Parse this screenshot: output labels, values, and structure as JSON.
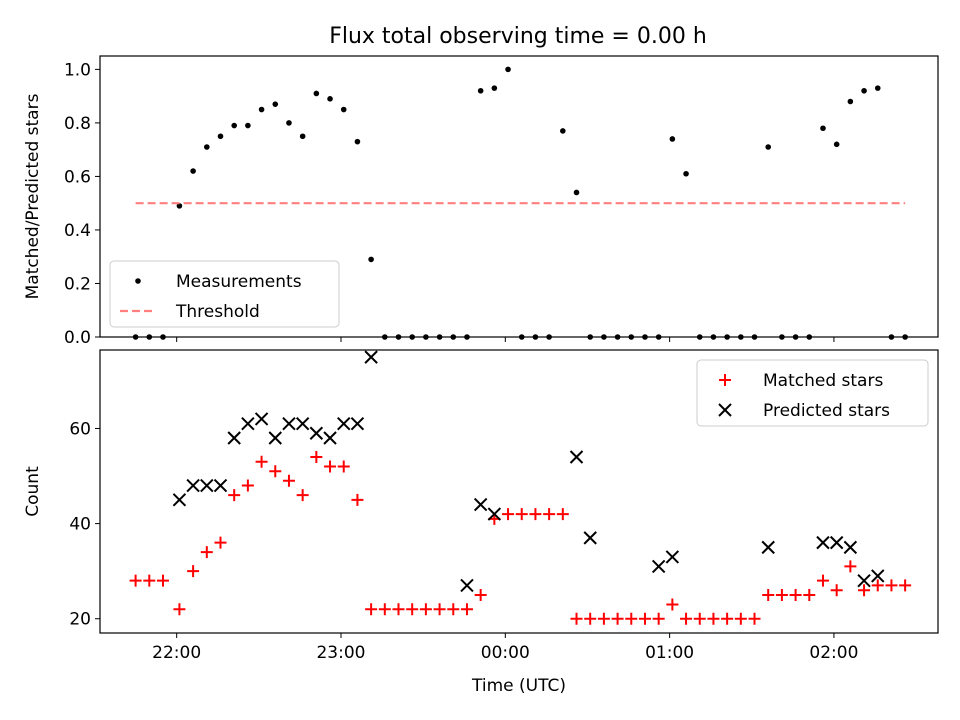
{
  "title": "Flux total observing time = 0.00 h",
  "chart_data": [
    {
      "type": "scatter",
      "ylabel": "Matched/Predicted stars",
      "xlabel": "",
      "xlim": [
        "21:32",
        "02:38"
      ],
      "ylim": [
        0,
        1.05
      ],
      "x_ticks": [
        "22:00",
        "23:00",
        "00:00",
        "01:00",
        "02:00"
      ],
      "y_ticks": [
        0.0,
        0.2,
        0.4,
        0.6,
        0.8,
        1.0
      ],
      "y_tick_labels": [
        "0.0",
        "0.2",
        "0.4",
        "0.6",
        "0.8",
        "1.0"
      ],
      "legend_position": "lower-left",
      "series": [
        {
          "name": "Measurements",
          "marker": "dot",
          "color": "#000000",
          "x": [
            "21:45",
            "21:50",
            "21:55",
            "22:01",
            "22:06",
            "22:11",
            "22:16",
            "22:21",
            "22:26",
            "22:31",
            "22:36",
            "22:41",
            "22:46",
            "22:51",
            "22:56",
            "23:01",
            "23:06",
            "23:11",
            "23:16",
            "23:21",
            "23:26",
            "23:31",
            "23:36",
            "23:41",
            "23:46",
            "23:51",
            "23:56",
            "00:01",
            "00:06",
            "00:11",
            "00:16",
            "00:21",
            "00:26",
            "00:31",
            "00:36",
            "00:41",
            "00:46",
            "00:51",
            "00:56",
            "01:01",
            "01:06",
            "01:11",
            "01:16",
            "01:21",
            "01:26",
            "01:31",
            "01:36",
            "01:41",
            "01:46",
            "01:51",
            "01:56",
            "02:01",
            "02:06",
            "02:11",
            "02:16",
            "02:21",
            "02:26"
          ],
          "y": [
            0,
            0,
            0,
            0.49,
            0.62,
            0.71,
            0.75,
            0.79,
            0.79,
            0.85,
            0.87,
            0.8,
            0.75,
            0.91,
            0.89,
            0.85,
            0.73,
            0.29,
            0,
            0,
            0,
            0,
            0,
            0,
            0,
            0.92,
            0.93,
            1.0,
            0,
            0,
            0,
            0.77,
            0.54,
            0,
            0,
            0,
            0,
            0,
            0,
            0.74,
            0.61,
            0,
            0,
            0,
            0,
            0,
            0.71,
            0,
            0,
            0,
            0.78,
            0.72,
            0.88,
            0.92,
            0.93,
            0,
            0
          ]
        },
        {
          "name": "Threshold",
          "style": "dashed",
          "color": "#ff7f7f",
          "x": [
            "21:45",
            "02:26"
          ],
          "y": [
            0.5,
            0.5
          ]
        }
      ]
    },
    {
      "type": "scatter",
      "ylabel": "Count",
      "xlabel": "Time (UTC)",
      "xlim": [
        "21:32",
        "02:38"
      ],
      "ylim": [
        17,
        76.5
      ],
      "x_ticks": [
        "22:00",
        "23:00",
        "00:00",
        "01:00",
        "02:00"
      ],
      "y_ticks": [
        20,
        40,
        60
      ],
      "y_tick_labels": [
        "20",
        "40",
        "60"
      ],
      "legend_position": "top-right",
      "series": [
        {
          "name": "Matched stars",
          "marker": "plus",
          "color": "#ff0000",
          "x": [
            "21:45",
            "21:50",
            "21:55",
            "22:01",
            "22:06",
            "22:11",
            "22:16",
            "22:21",
            "22:26",
            "22:31",
            "22:36",
            "22:41",
            "22:46",
            "22:51",
            "22:56",
            "23:01",
            "23:06",
            "23:11",
            "23:16",
            "23:21",
            "23:26",
            "23:31",
            "23:36",
            "23:41",
            "23:46",
            "23:51",
            "23:56",
            "00:01",
            "00:06",
            "00:11",
            "00:16",
            "00:21",
            "00:26",
            "00:31",
            "00:36",
            "00:41",
            "00:46",
            "00:51",
            "00:56",
            "01:01",
            "01:06",
            "01:11",
            "01:16",
            "01:21",
            "01:26",
            "01:31",
            "01:36",
            "01:41",
            "01:46",
            "01:51",
            "01:56",
            "02:01",
            "02:06",
            "02:11",
            "02:16",
            "02:21",
            "02:26"
          ],
          "y": [
            28,
            28,
            28,
            22,
            30,
            34,
            36,
            46,
            48,
            53,
            51,
            49,
            46,
            54,
            52,
            52,
            45,
            22,
            22,
            22,
            22,
            22,
            22,
            22,
            22,
            25,
            41,
            42,
            42,
            42,
            42,
            42,
            20,
            20,
            20,
            20,
            20,
            20,
            20,
            23,
            20,
            20,
            20,
            20,
            20,
            20,
            25,
            25,
            25,
            25,
            28,
            26,
            31,
            26,
            27,
            27,
            27
          ]
        },
        {
          "name": "Predicted stars",
          "marker": "x",
          "color": "#000000",
          "x": [
            "22:01",
            "22:06",
            "22:11",
            "22:16",
            "22:21",
            "22:26",
            "22:31",
            "22:36",
            "22:41",
            "22:46",
            "22:51",
            "22:56",
            "23:01",
            "23:06",
            "23:11",
            "23:46",
            "23:51",
            "23:56",
            "00:26",
            "00:31",
            "00:56",
            "01:01",
            "01:36",
            "01:56",
            "02:01",
            "02:06",
            "02:11",
            "02:16"
          ],
          "y": [
            45,
            48,
            48,
            48,
            58,
            61,
            62,
            58,
            61,
            61,
            59,
            58,
            61,
            61,
            75,
            27,
            44,
            42,
            54,
            37,
            31,
            33,
            35,
            36,
            36,
            35,
            28,
            29
          ]
        }
      ]
    }
  ]
}
